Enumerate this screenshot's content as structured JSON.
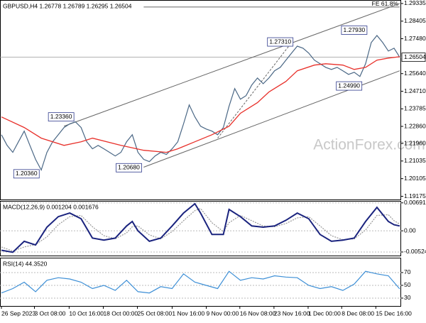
{
  "header": {
    "watermark": "ActionForex.com"
  },
  "chart_data": [
    {
      "type": "line",
      "title": "GBPUSD,H4  1.26778 1.26789 1.26295 1.26504",
      "xlim": [
        0,
        70
      ],
      "ylim": [
        1.1897,
        1.2952
      ],
      "yticks": [
        1.29335,
        1.28405,
        {
          "value": 1.2748,
          "label": "1.27480"
        },
        {
          "value": 1.2564,
          "label": "1.25640"
        },
        {
          "value": 1.2471,
          "label": "1.24710"
        },
        1.23785,
        {
          "value": 1.2286,
          "label": "1.22860"
        },
        {
          "value": 1.2196,
          "label": "1.21960"
        },
        1.21035,
        1.20105,
        1.19175
      ],
      "last_price": 1.26504,
      "series": [
        {
          "color": "#4a6785",
          "x": [
            0,
            1,
            2,
            3,
            4,
            5,
            6,
            7,
            8,
            9,
            10,
            11,
            12,
            13,
            14,
            15,
            16,
            17,
            18,
            19,
            20,
            21,
            22,
            23,
            24,
            25,
            26,
            27,
            28,
            29,
            30,
            31,
            32,
            33,
            34,
            35,
            36,
            37,
            38,
            39,
            40,
            41,
            42,
            43,
            44,
            45,
            46,
            47,
            48,
            49,
            50,
            51,
            52,
            53,
            54,
            55,
            56,
            57,
            58,
            59,
            60,
            61,
            62,
            63,
            64,
            65,
            66,
            67,
            68,
            69,
            70
          ],
          "values": [
            1.2242,
            1.2186,
            1.2149,
            1.2205,
            1.2261,
            1.2186,
            1.2112,
            1.2056,
            1.2149,
            1.2205,
            1.2242,
            1.228,
            1.2299,
            1.231,
            1.228,
            1.2205,
            1.2168,
            1.2186,
            1.2168,
            1.2149,
            1.213,
            1.2149,
            1.2205,
            1.2242,
            1.2149,
            1.2112,
            1.21,
            1.213,
            1.2149,
            1.2138,
            1.2168,
            1.2205,
            1.2299,
            1.2399,
            1.2336,
            1.2287,
            1.2272,
            1.2261,
            1.2242,
            1.228,
            1.2392,
            1.2485,
            1.2429,
            1.2448,
            1.2504,
            1.2541,
            1.2511,
            1.2541,
            1.2579,
            1.2597,
            1.2635,
            1.2672,
            1.2709,
            1.2698,
            1.2672,
            1.2635,
            1.2616,
            1.2597,
            1.2586,
            1.2597,
            1.2579,
            1.256,
            1.2571,
            1.2549,
            1.2616,
            1.2728,
            1.2765,
            1.2728,
            1.2683,
            1.2698,
            1.26504
          ]
        },
        {
          "color": "#e8302a",
          "x": [
            0,
            4,
            7,
            11,
            14,
            16,
            21,
            25,
            29,
            31,
            34,
            37,
            40,
            42,
            45,
            47,
            50,
            52,
            55,
            57,
            60,
            62,
            64,
            66,
            68,
            70
          ],
          "values": [
            1.2336,
            1.228,
            1.2224,
            1.2186,
            1.2205,
            1.2224,
            1.2186,
            1.216,
            1.2149,
            1.2168,
            1.2205,
            1.2242,
            1.2287,
            1.2355,
            1.2411,
            1.2467,
            1.2523,
            1.2579,
            1.2609,
            1.2616,
            1.2609,
            1.2586,
            1.2597,
            1.2635,
            1.2646,
            1.2653
          ]
        }
      ],
      "trendlines": [
        {
          "color": "#666666",
          "dashed": false,
          "x": [
            11,
            70
          ],
          "values": [
            1.2287,
            1.29335
          ]
        },
        {
          "color": "#666666",
          "dashed": false,
          "x": [
            25,
            70
          ],
          "values": [
            1.2071,
            1.2579
          ]
        },
        {
          "color": "#666666",
          "dashed": true,
          "x": [
            38,
            51
          ],
          "values": [
            1.2224,
            1.2728
          ]
        }
      ],
      "fe_line": {
        "label": "FE 61.8%",
        "value": 1.2915,
        "x": [
          25,
          70
        ]
      },
      "annotations": [
        {
          "x": 62,
          "value": 1.2793,
          "label": "1.27930"
        },
        {
          "x": 49,
          "value": 1.2731,
          "label": "1.27310"
        },
        {
          "x": 10.5,
          "value": 1.2336,
          "label": "1.23360"
        },
        {
          "x": 4.4,
          "value": 1.2036,
          "label": "1.20360"
        },
        {
          "x": 22.4,
          "value": 1.2068,
          "label": "1.20680"
        },
        {
          "x": 61.1,
          "value": 1.2499,
          "label": "1.24990"
        }
      ]
    },
    {
      "type": "line",
      "title": "MACD(12,26,9) 0.001204 0.001676",
      "xlim": [
        0,
        70
      ],
      "ylim": [
        -0.0063,
        0.0074
      ],
      "yticks": [
        0.006915,
        {
          "value": 0,
          "label": "0.00"
        },
        -0.005241
      ],
      "series": [
        {
          "color": "#999999",
          "dashed": true,
          "x": [
            0,
            2,
            4,
            6,
            8,
            10,
            12,
            14,
            16,
            18,
            20,
            22,
            23,
            24,
            26,
            28,
            30,
            32,
            34,
            35,
            37,
            39,
            40,
            42,
            44,
            46,
            48,
            50,
            52,
            54,
            56,
            58,
            60,
            62,
            64,
            66,
            68,
            69,
            70
          ],
          "values": [
            -0.004,
            -0.005,
            -0.004,
            -0.0034,
            -0.0015,
            0.0015,
            0.0035,
            0.0038,
            0.001,
            -0.0012,
            -0.002,
            -0.0005,
            0.001,
            0.0012,
            -0.001,
            -0.002,
            -0.0002,
            0.0025,
            0.005,
            0.0055,
            0.002,
            -0.0002,
            0.002,
            0.0038,
            0.0025,
            0.0012,
            0.001,
            0.0018,
            0.0032,
            0.0035,
            0.0012,
            -0.0012,
            -0.0022,
            -0.002,
            0.0002,
            0.0038,
            0.004,
            0.0025,
            0.001676
          ]
        },
        {
          "color": "#1a237e",
          "dashed": false,
          "x": [
            0,
            2,
            4,
            6,
            8,
            10,
            12,
            14,
            16,
            18,
            20,
            22,
            23,
            24,
            26,
            28,
            30,
            32,
            34,
            35,
            37,
            39,
            40,
            42,
            44,
            46,
            48,
            50,
            52,
            54,
            56,
            58,
            60,
            62,
            64,
            66,
            68,
            69,
            70
          ],
          "values": [
            -0.0048,
            -0.0053,
            -0.0026,
            -0.0035,
            0.0009,
            0.0035,
            0.0044,
            0.003,
            -0.0018,
            -0.0023,
            -0.0018,
            0.0012,
            0.0023,
            0,
            -0.0026,
            -0.0018,
            0.0012,
            0.0044,
            0.0067,
            0.0044,
            -0.0009,
            -0.0009,
            0.0053,
            0.0035,
            0.0012,
            0.0009,
            0.0012,
            0.0026,
            0.0044,
            0.003,
            -0.0009,
            -0.0026,
            -0.0023,
            -0.0018,
            0.0023,
            0.0058,
            0.0023,
            0.0015,
            0.001204
          ]
        }
      ]
    },
    {
      "type": "line",
      "title": "RSI(14) 44.3520",
      "xlim": [
        0,
        70
      ],
      "ylim": [
        16.6,
        93.3
      ],
      "yticks": [
        70,
        50,
        30
      ],
      "xticks": [
        {
          "value": 0,
          "label": "26 Sep 2023"
        },
        {
          "value": 5.8,
          "label": "3 Oct 08:00"
        },
        {
          "value": 11.9,
          "label": "10 Oct 16:00"
        },
        {
          "value": 17.9,
          "label": "18 Oct 00:00"
        },
        {
          "value": 23.9,
          "label": "25 Oct 08:00"
        },
        {
          "value": 30,
          "label": "1 Nov 16:00"
        },
        {
          "value": 36,
          "label": "9 Nov 00:00"
        },
        {
          "value": 41.9,
          "label": "16 Nov 08:00"
        },
        {
          "value": 47.9,
          "label": "23 Nov 16:00"
        },
        {
          "value": 53.9,
          "label": "1 Dec 00:00"
        },
        {
          "value": 59.8,
          "label": "8 Dec 08:00"
        },
        {
          "value": 65.8,
          "label": "15 Dec 16:00"
        }
      ],
      "series": [
        {
          "color": "#3d8fd6",
          "dashed": false,
          "x": [
            0,
            2,
            4,
            6,
            8,
            10,
            12,
            14,
            16,
            18,
            20,
            22,
            24,
            26,
            28,
            30,
            32,
            34,
            36,
            38,
            40,
            42,
            44,
            46,
            48,
            50,
            52,
            54,
            56,
            58,
            60,
            62,
            64,
            66,
            68,
            70
          ],
          "values": [
            38,
            45,
            55,
            40,
            58,
            62,
            60,
            55,
            45,
            50,
            42,
            58,
            40,
            38,
            48,
            45,
            68,
            55,
            50,
            45,
            72,
            58,
            62,
            60,
            65,
            63,
            62,
            50,
            45,
            48,
            42,
            52,
            72,
            68,
            65,
            44.352
          ]
        }
      ]
    }
  ]
}
